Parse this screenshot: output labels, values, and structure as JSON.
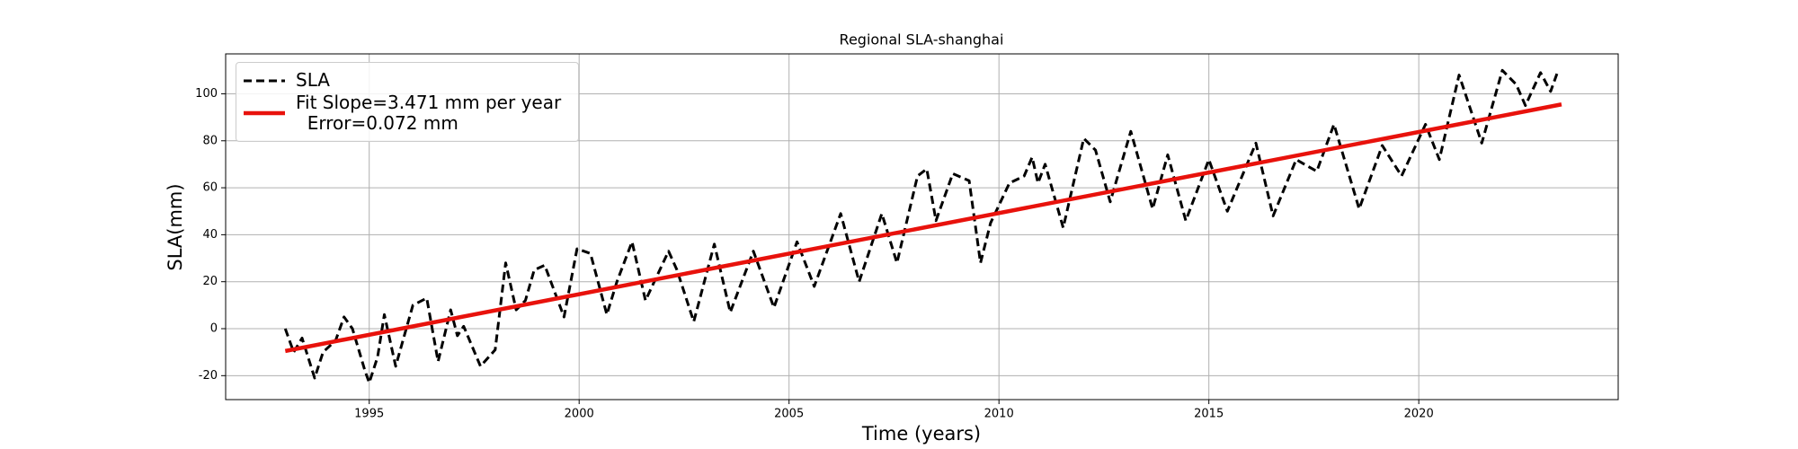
{
  "chart_data": {
    "type": "line",
    "title": "Regional SLA-shanghai",
    "x_label": "Time (years)",
    "y_label": "SLA(mm)",
    "xlim": [
      1991.58,
      2024.75
    ],
    "ylim": [
      -30.2,
      117
    ],
    "xticks": [
      1995,
      2000,
      2005,
      2010,
      2015,
      2020
    ],
    "yticks": [
      -20,
      0,
      20,
      40,
      60,
      80,
      100
    ],
    "grid": true,
    "legend": "upper left",
    "series": [
      {
        "name": "SLA",
        "color": "#000000",
        "dash": true,
        "x": [
          1993.0,
          1993.2,
          1993.4,
          1993.7,
          1993.9,
          1994.2,
          1994.4,
          1994.6,
          1994.9,
          1995.0,
          1995.2,
          1995.36,
          1995.63,
          1996.04,
          1996.37,
          1996.64,
          1996.94,
          1997.1,
          1997.25,
          1997.65,
          1998.0,
          1998.25,
          1998.5,
          1998.72,
          1998.93,
          1999.18,
          1999.64,
          1999.95,
          2000.27,
          2000.66,
          2000.9,
          2001.26,
          2001.58,
          2002.13,
          2002.33,
          2002.73,
          2003.22,
          2003.6,
          2004.15,
          2004.64,
          2005.19,
          2005.6,
          2006.23,
          2006.67,
          2007.21,
          2007.57,
          2008.06,
          2008.28,
          2008.5,
          2008.9,
          2009.29,
          2009.56,
          2009.8,
          2010.25,
          2010.6,
          2010.79,
          2010.93,
          2011.1,
          2011.53,
          2012.02,
          2012.3,
          2012.65,
          2013.14,
          2013.66,
          2014.02,
          2014.45,
          2015.0,
          2015.44,
          2016.12,
          2016.53,
          2017.08,
          2017.57,
          2017.98,
          2018.58,
          2019.13,
          2019.59,
          2020.16,
          2020.49,
          2020.96,
          2021.5,
          2021.99,
          2022.32,
          2022.54,
          2022.9,
          2023.14,
          2023.3
        ],
        "values": [
          0,
          -10,
          -4,
          -21,
          -10,
          -5,
          5,
          0,
          -18,
          -23,
          -12,
          6,
          -16,
          10,
          13,
          -14,
          8,
          -3,
          1,
          -16,
          -9,
          28,
          8,
          12,
          25,
          27,
          5,
          34,
          32,
          6,
          20,
          37,
          12,
          33,
          25,
          3,
          36,
          7,
          33,
          9,
          37,
          18,
          49,
          20,
          49,
          28,
          65,
          68,
          46,
          66,
          63,
          28,
          45,
          62,
          65,
          73,
          62,
          70,
          43,
          81,
          76,
          54,
          84,
          51,
          74,
          46,
          72,
          50,
          79,
          48,
          72,
          67,
          87,
          51,
          78,
          65,
          87,
          72,
          108,
          79,
          110,
          104,
          95,
          109,
          101,
          109
        ]
      },
      {
        "name": "Fit Slope=3.471 mm per year\n  Error=0.072 mm",
        "color": "#e8120c",
        "dash": false,
        "x": [
          1993.0,
          2023.4
        ],
        "values": [
          -9.5,
          95.5
        ]
      }
    ]
  }
}
